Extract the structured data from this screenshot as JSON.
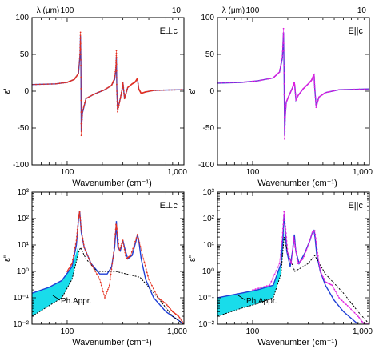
{
  "chart_data": [
    {
      "id": "top-left",
      "type": "line",
      "panel_label": "E⊥c",
      "ylabel": "ε'",
      "xlabel": "Wavenumber (cm⁻¹)",
      "top_axis_label": "λ (μm)",
      "top_ticks": [
        "100",
        "10"
      ],
      "xscale": "log",
      "xlim": [
        50,
        1000
      ],
      "xtick_labels": [
        "100",
        "1,000"
      ],
      "yscale": "linear",
      "ylim": [
        -100,
        100
      ],
      "ytick_labels": [
        "-100",
        "-50",
        "0",
        "50",
        "100"
      ],
      "series": [
        {
          "role": "fit",
          "color": "#1f3fd6",
          "x": [
            50,
            80,
            100,
            115,
            125,
            129,
            130,
            131,
            132,
            135,
            145,
            170,
            210,
            240,
            255,
            262,
            264,
            266,
            270,
            285,
            295,
            300,
            310,
            330,
            360,
            380,
            395,
            400,
            410,
            430,
            470,
            550,
            700,
            1000
          ],
          "y": [
            9,
            10,
            12,
            16,
            24,
            50,
            75,
            40,
            -55,
            -30,
            -10,
            -4,
            2,
            8,
            16,
            30,
            47,
            5,
            -25,
            -10,
            2,
            12,
            -10,
            5,
            10,
            12,
            16,
            17,
            3,
            -3,
            -1,
            1,
            1.5,
            2
          ]
        },
        {
          "role": "data",
          "color": "#e53020",
          "x": [
            50,
            80,
            100,
            115,
            125,
            129,
            130,
            131,
            132,
            135,
            145,
            170,
            210,
            240,
            255,
            262,
            264,
            266,
            270,
            285,
            295,
            300,
            310,
            330,
            360,
            380,
            395,
            400,
            410,
            430,
            470,
            550,
            700,
            1000
          ],
          "y": [
            9,
            10,
            12,
            16,
            24,
            55,
            80,
            35,
            -60,
            -28,
            -10,
            -4,
            2,
            8,
            18,
            35,
            55,
            0,
            -28,
            -10,
            2,
            12,
            -10,
            5,
            10,
            12,
            16,
            17,
            3,
            -3,
            -1,
            1,
            1.5,
            2
          ]
        }
      ]
    },
    {
      "id": "top-right",
      "type": "line",
      "panel_label": "E||c",
      "ylabel": "ε'",
      "xlabel": "Wavenumber (cm⁻¹)",
      "top_axis_label": "λ (μm)",
      "top_ticks": [
        "100",
        "10"
      ],
      "xscale": "log",
      "xlim": [
        50,
        1000
      ],
      "xtick_labels": [
        "100",
        "1,000"
      ],
      "yscale": "linear",
      "ylim": [
        -100,
        100
      ],
      "ytick_labels": [
        "-100",
        "-50",
        "0",
        "50",
        "100"
      ],
      "series": [
        {
          "role": "fit",
          "color": "#1f3fd6",
          "x": [
            50,
            80,
            110,
            150,
            170,
            180,
            184,
            186,
            188,
            190,
            194,
            205,
            220,
            227,
            230,
            235,
            245,
            270,
            300,
            320,
            330,
            336,
            340,
            350,
            370,
            420,
            550,
            1000
          ],
          "y": [
            11,
            12,
            14,
            18,
            26,
            45,
            80,
            30,
            -60,
            -35,
            -15,
            -6,
            5,
            12,
            6,
            -12,
            -6,
            3,
            10,
            15,
            20,
            22,
            5,
            -20,
            -8,
            -2,
            2,
            3
          ]
        },
        {
          "role": "data",
          "color": "#e020e0",
          "x": [
            50,
            80,
            110,
            150,
            170,
            180,
            184,
            186,
            188,
            190,
            194,
            205,
            220,
            227,
            230,
            235,
            245,
            270,
            300,
            320,
            330,
            336,
            340,
            350,
            370,
            420,
            550,
            1000
          ],
          "y": [
            11,
            12,
            14,
            18,
            26,
            48,
            85,
            25,
            -65,
            -35,
            -15,
            -6,
            5,
            12,
            6,
            -12,
            -6,
            3,
            10,
            15,
            20,
            22,
            5,
            -22,
            -8,
            -2,
            2,
            3
          ]
        }
      ]
    },
    {
      "id": "bottom-left",
      "type": "line",
      "panel_label": "E⊥c",
      "ylabel": "ε''",
      "xlabel": "Wavenumber (cm⁻¹)",
      "annotation": "Ph.Appr.",
      "xscale": "log",
      "xlim": [
        50,
        1000
      ],
      "xtick_labels": [
        "100",
        "1,000"
      ],
      "yscale": "log",
      "ylim": [
        0.01,
        1000
      ],
      "ytick_labels": [
        "10⁻²",
        "10⁻¹",
        "10⁰",
        "10¹",
        "10²",
        "10³"
      ],
      "band": {
        "color": "#00d8e8",
        "x": [
          50,
          70,
          90,
          110,
          125
        ],
        "upper": [
          0.15,
          0.25,
          0.45,
          1.5,
          10
        ],
        "lower": [
          0.02,
          0.05,
          0.1,
          0.5,
          5
        ]
      },
      "series": [
        {
          "role": "fit",
          "color": "#1f3fd6",
          "x": [
            50,
            70,
            90,
            110,
            120,
            125,
            128,
            132,
            140,
            160,
            190,
            220,
            240,
            255,
            262,
            264,
            266,
            272,
            285,
            300,
            310,
            330,
            360,
            390,
            400,
            410,
            430,
            470,
            550,
            700,
            1000
          ],
          "y": [
            0.15,
            0.25,
            0.45,
            1.5,
            10,
            90,
            200,
            30,
            8,
            2,
            0.8,
            0.8,
            1.5,
            8,
            40,
            80,
            30,
            8,
            6,
            15,
            8,
            3,
            4,
            15,
            25,
            15,
            3,
            0.5,
            0.1,
            0.03,
            0.01
          ]
        },
        {
          "role": "approx",
          "color": "#000000",
          "x": [
            50,
            70,
            90,
            110,
            125,
            130,
            145,
            180,
            260,
            420,
            600,
            800,
            1000
          ],
          "y": [
            0.02,
            0.05,
            0.1,
            0.5,
            5,
            8,
            3,
            1,
            1,
            0.6,
            0.1,
            0.02,
            0.01
          ]
        },
        {
          "role": "data",
          "color": "#e53020",
          "x": [
            100,
            110,
            120,
            125,
            128,
            132,
            140,
            160,
            190,
            210,
            230,
            250,
            262,
            266,
            280,
            300,
            320,
            350,
            400,
            450,
            500,
            600,
            700,
            800,
            900,
            1000
          ],
          "y": [
            1,
            2,
            15,
            100,
            180,
            40,
            8,
            2,
            0.5,
            0.1,
            0.3,
            5,
            60,
            40,
            6,
            15,
            3,
            4,
            25,
            3,
            0.5,
            0.1,
            0.06,
            0.03,
            0.02,
            0.01
          ]
        }
      ]
    },
    {
      "id": "bottom-right",
      "type": "line",
      "panel_label": "E||c",
      "ylabel": "ε''",
      "xlabel": "Wavenumber (cm⁻¹)",
      "annotation": "Ph.Appr.",
      "xscale": "log",
      "xlim": [
        50,
        1000
      ],
      "xtick_labels": [
        "100",
        "1,000"
      ],
      "yscale": "log",
      "ylim": [
        0.01,
        1000
      ],
      "ytick_labels": [
        "10⁻²",
        "10⁻¹",
        "10⁰",
        "10¹",
        "10²",
        "10³"
      ],
      "band": {
        "color": "#00d8e8",
        "x": [
          50,
          80,
          110,
          150,
          175,
          186
        ],
        "upper": [
          0.1,
          0.15,
          0.2,
          0.3,
          2,
          50
        ],
        "lower": [
          0.02,
          0.04,
          0.06,
          0.1,
          0.8,
          20
        ]
      },
      "series": [
        {
          "role": "fit",
          "color": "#1f3fd6",
          "x": [
            50,
            80,
            110,
            150,
            175,
            182,
            186,
            190,
            196,
            210,
            222,
            228,
            234,
            250,
            280,
            310,
            325,
            335,
            342,
            355,
            380,
            420,
            500,
            600,
            800,
            1000
          ],
          "y": [
            0.1,
            0.15,
            0.2,
            0.3,
            2,
            20,
            150,
            40,
            6,
            1.5,
            8,
            25,
            6,
            2,
            5,
            15,
            30,
            35,
            20,
            4,
            1,
            0.3,
            0.08,
            0.03,
            0.01,
            0.006
          ]
        },
        {
          "role": "approx",
          "color": "#000000",
          "x": [
            50,
            80,
            110,
            150,
            175,
            186,
            200,
            230,
            300,
            340,
            420,
            600,
            800,
            1000
          ],
          "y": [
            0.02,
            0.04,
            0.06,
            0.1,
            0.8,
            20,
            5,
            1,
            2,
            4,
            0.8,
            0.15,
            0.03,
            0.01
          ]
        },
        {
          "role": "data",
          "color": "#e020e0",
          "x": [
            100,
            140,
            170,
            180,
            186,
            192,
            200,
            215,
            225,
            232,
            245,
            270,
            300,
            325,
            340,
            360,
            380,
            420,
            480,
            550,
            650,
            800,
            900,
            1000
          ],
          "y": [
            0.2,
            0.3,
            2,
            20,
            180,
            40,
            5,
            2,
            20,
            8,
            2,
            3,
            10,
            30,
            35,
            5,
            1,
            0.4,
            0.3,
            0.1,
            0.05,
            0.02,
            0.01,
            0.01
          ]
        }
      ]
    }
  ]
}
